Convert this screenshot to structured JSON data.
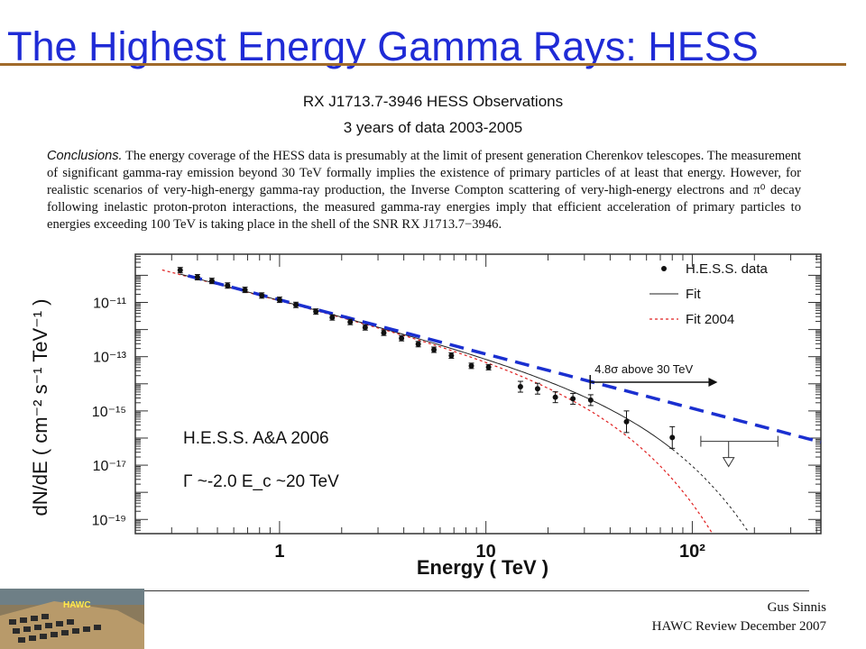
{
  "slide": {
    "title": "The Highest Energy Gamma Rays: HESS",
    "subtitle_1": "RX J1713.7-3946 HESS Observations",
    "subtitle_2": "3 years of data 2003-2005",
    "conclusions_lead": "Conclusions.",
    "conclusions_body": "The energy coverage of the HESS data is presumably at the limit of present generation Cherenkov telescopes. The measurement of significant gamma-ray emission beyond 30 TeV formally implies the existence of primary particles of at least that energy. However, for realistic scenarios of very-high-energy gamma-ray production, the Inverse Compton scattering of very-high-energy electrons and π⁰ decay following inelastic proton-proton interactions, the measured gamma-ray energies imply that efficient acceleration of primary particles to energies exceeding 100 TeV is taking place in the shell of the SNR RX J1713.7−3946.",
    "footer_author": "Gus Sinnis",
    "footer_event": "HAWC Review December 2007",
    "logo_label": "HAWC"
  },
  "chart_data": {
    "type": "scatter",
    "xlabel": "Energy ( TeV )",
    "ylabel": "dN/dE ( cm⁻² s⁻¹ TeV⁻¹ )",
    "xscale": "log",
    "yscale": "log",
    "xlim": [
      0.2,
      420
    ],
    "ylim": [
      3e-20,
      6e-10
    ],
    "x_ticks": [
      {
        "value": 1,
        "label": "1"
      },
      {
        "value": 10,
        "label": "10"
      },
      {
        "value": 100,
        "label": "10²"
      }
    ],
    "y_ticks": [
      {
        "value": 1e-11,
        "label": "10⁻¹¹"
      },
      {
        "value": 1e-13,
        "label": "10⁻¹³"
      },
      {
        "value": 1e-15,
        "label": "10⁻¹⁵"
      },
      {
        "value": 1e-17,
        "label": "10⁻¹⁷"
      },
      {
        "value": 1e-19,
        "label": "10⁻¹⁹"
      }
    ],
    "legend": {
      "placement": "top-right",
      "entries": [
        {
          "label": "H.E.S.S. data",
          "style": "marker"
        },
        {
          "label": "Fit",
          "style": "solid"
        },
        {
          "label": "Fit 2004",
          "style": "dashed-red"
        }
      ]
    },
    "series": [
      {
        "name": "H.E.S.S. data",
        "points": [
          {
            "x": 0.33,
            "y": 1.55e-10
          },
          {
            "x": 0.4,
            "y": 8.5e-11
          },
          {
            "x": 0.47,
            "y": 6.2e-11
          },
          {
            "x": 0.56,
            "y": 4.2e-11
          },
          {
            "x": 0.68,
            "y": 2.9e-11
          },
          {
            "x": 0.82,
            "y": 1.8e-11
          },
          {
            "x": 1.0,
            "y": 1.25e-11
          },
          {
            "x": 1.2,
            "y": 8.1e-12
          },
          {
            "x": 1.5,
            "y": 4.6e-12
          },
          {
            "x": 1.8,
            "y": 2.8e-12
          },
          {
            "x": 2.2,
            "y": 1.9e-12
          },
          {
            "x": 2.6,
            "y": 1.2e-12
          },
          {
            "x": 3.2,
            "y": 7.6e-13
          },
          {
            "x": 3.9,
            "y": 4.8e-13
          },
          {
            "x": 4.7,
            "y": 2.9e-13
          },
          {
            "x": 5.6,
            "y": 1.8e-13
          },
          {
            "x": 6.8,
            "y": 1.1e-13
          },
          {
            "x": 8.5,
            "y": 4.6e-14
          },
          {
            "x": 10.3,
            "y": 4.1e-14
          },
          {
            "x": 14.7,
            "y": 7.8e-15
          },
          {
            "x": 17.8,
            "y": 6.6e-15
          },
          {
            "x": 21.7,
            "y": 3.2e-15
          },
          {
            "x": 26.4,
            "y": 2.8e-15
          },
          {
            "x": 32.2,
            "y": 2.5e-15
          },
          {
            "x": 48,
            "y": 4e-16
          },
          {
            "x": 80,
            "y": 1.05e-16
          }
        ],
        "upper_limit": {
          "x": 150,
          "y": 7.6e-17
        }
      },
      {
        "name": "Fit",
        "style": "solid-black",
        "formula": "power-law with exponential cutoff",
        "index": -2.0,
        "cutoff_TeV": 20
      },
      {
        "name": "Fit 2004",
        "style": "dashed-red"
      },
      {
        "name": "",
        "style": "dashed-blue",
        "formula": "pure power law"
      }
    ],
    "annotations": [
      {
        "text": "4.8σ above 30 TeV",
        "x_start": 32,
        "x_end": 100
      },
      {
        "text": "H.E.S.S. A&A 2006"
      },
      {
        "text": "Γ ~-2.0 E_c ~20 TeV"
      }
    ]
  },
  "colors": {
    "title": "#1f2bd6",
    "title_rule": "#a06a2a",
    "fit_2004": "#e02020",
    "power_law": "#1a2fd0"
  }
}
